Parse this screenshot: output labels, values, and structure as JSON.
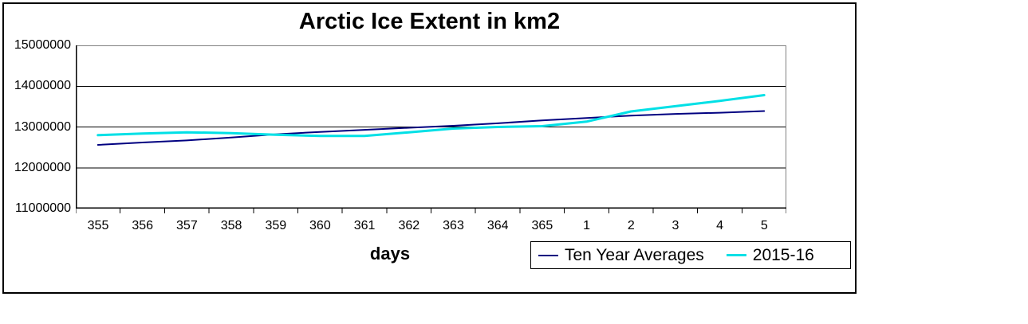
{
  "chart_data": {
    "type": "line",
    "title": "Arctic Ice Extent in km2",
    "xlabel": "days",
    "ylabel": "",
    "x_labels": [
      "355",
      "356",
      "357",
      "358",
      "359",
      "360",
      "361",
      "362",
      "363",
      "364",
      "365",
      "1",
      "2",
      "3",
      "4",
      "5"
    ],
    "y_tick_labels": [
      "15000000",
      "14000000",
      "13000000",
      "12000000",
      "11000000"
    ],
    "y_ticks": [
      15000000,
      14000000,
      13000000,
      12000000,
      11000000
    ],
    "ylim": [
      11000000,
      15000000
    ],
    "grid": "horizontal",
    "legend_position": "bottom-right",
    "colors": {
      "axis": "#000000",
      "gridline": "#000000",
      "plot_border": "#808080"
    },
    "series": [
      {
        "name": "Ten Year Averages",
        "color": "#000080",
        "values": [
          12560000,
          12620000,
          12670000,
          12740000,
          12820000,
          12880000,
          12930000,
          12980000,
          13030000,
          13090000,
          13160000,
          13220000,
          13280000,
          13320000,
          13350000,
          13390000
        ]
      },
      {
        "name": "2015-16",
        "color": "#00e0e6",
        "values": [
          12800000,
          12840000,
          12870000,
          12850000,
          12810000,
          12780000,
          12780000,
          12870000,
          12960000,
          13000000,
          13020000,
          13130000,
          13380000,
          13510000,
          13640000,
          13780000
        ]
      }
    ]
  }
}
